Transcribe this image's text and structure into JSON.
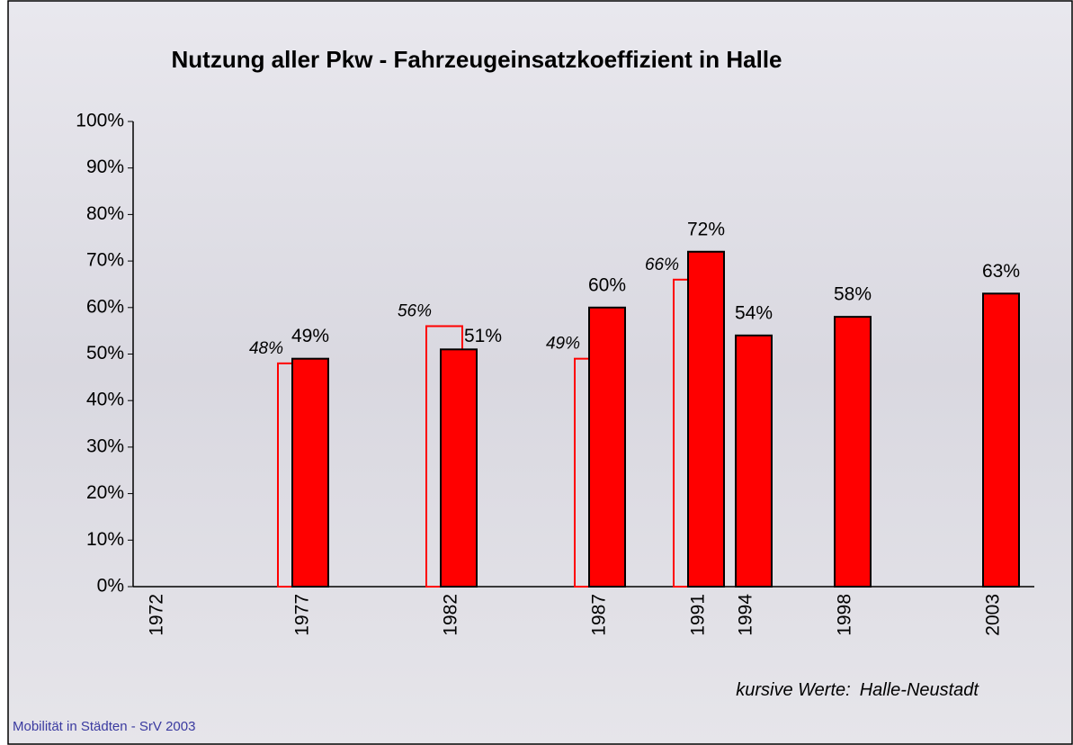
{
  "chart_data": {
    "type": "bar",
    "title": "Nutzung aller Pkw - Fahrzeugeinsatzkoeffizient in Halle",
    "categories": [
      "1972",
      "1977",
      "1982",
      "1987",
      "1991",
      "1994",
      "1998",
      "2003"
    ],
    "series": [
      {
        "color": "#ff0000",
        "values": [
          null,
          49,
          51,
          60,
          72,
          54,
          58,
          63
        ],
        "value_labels": [
          null,
          "49%",
          "51%",
          "60%",
          "72%",
          "54%",
          "58%",
          "63%"
        ]
      },
      {
        "name": "Halle-Neustadt",
        "color": "#ff0000",
        "values": [
          null,
          48,
          56,
          49,
          66,
          null,
          null,
          null
        ],
        "value_labels": [
          null,
          "48%",
          "56%",
          "49%",
          "66%",
          null,
          null,
          null
        ]
      }
    ],
    "ylim": [
      0,
      100
    ],
    "yticks": [
      {
        "value": 0,
        "label": "0%"
      },
      {
        "value": 10,
        "label": "10%"
      },
      {
        "value": 20,
        "label": "20%"
      },
      {
        "value": 30,
        "label": "30%"
      },
      {
        "value": 40,
        "label": "40%"
      },
      {
        "value": 50,
        "label": "50%"
      },
      {
        "value": 60,
        "label": "60%"
      },
      {
        "value": 70,
        "label": "70%"
      },
      {
        "value": 80,
        "label": "80%"
      },
      {
        "value": 90,
        "label": "90%"
      },
      {
        "value": 100,
        "label": "100%"
      }
    ],
    "annotation": "kursive Werte:",
    "footer": "Mobilität in Städten - SrV 2003"
  }
}
